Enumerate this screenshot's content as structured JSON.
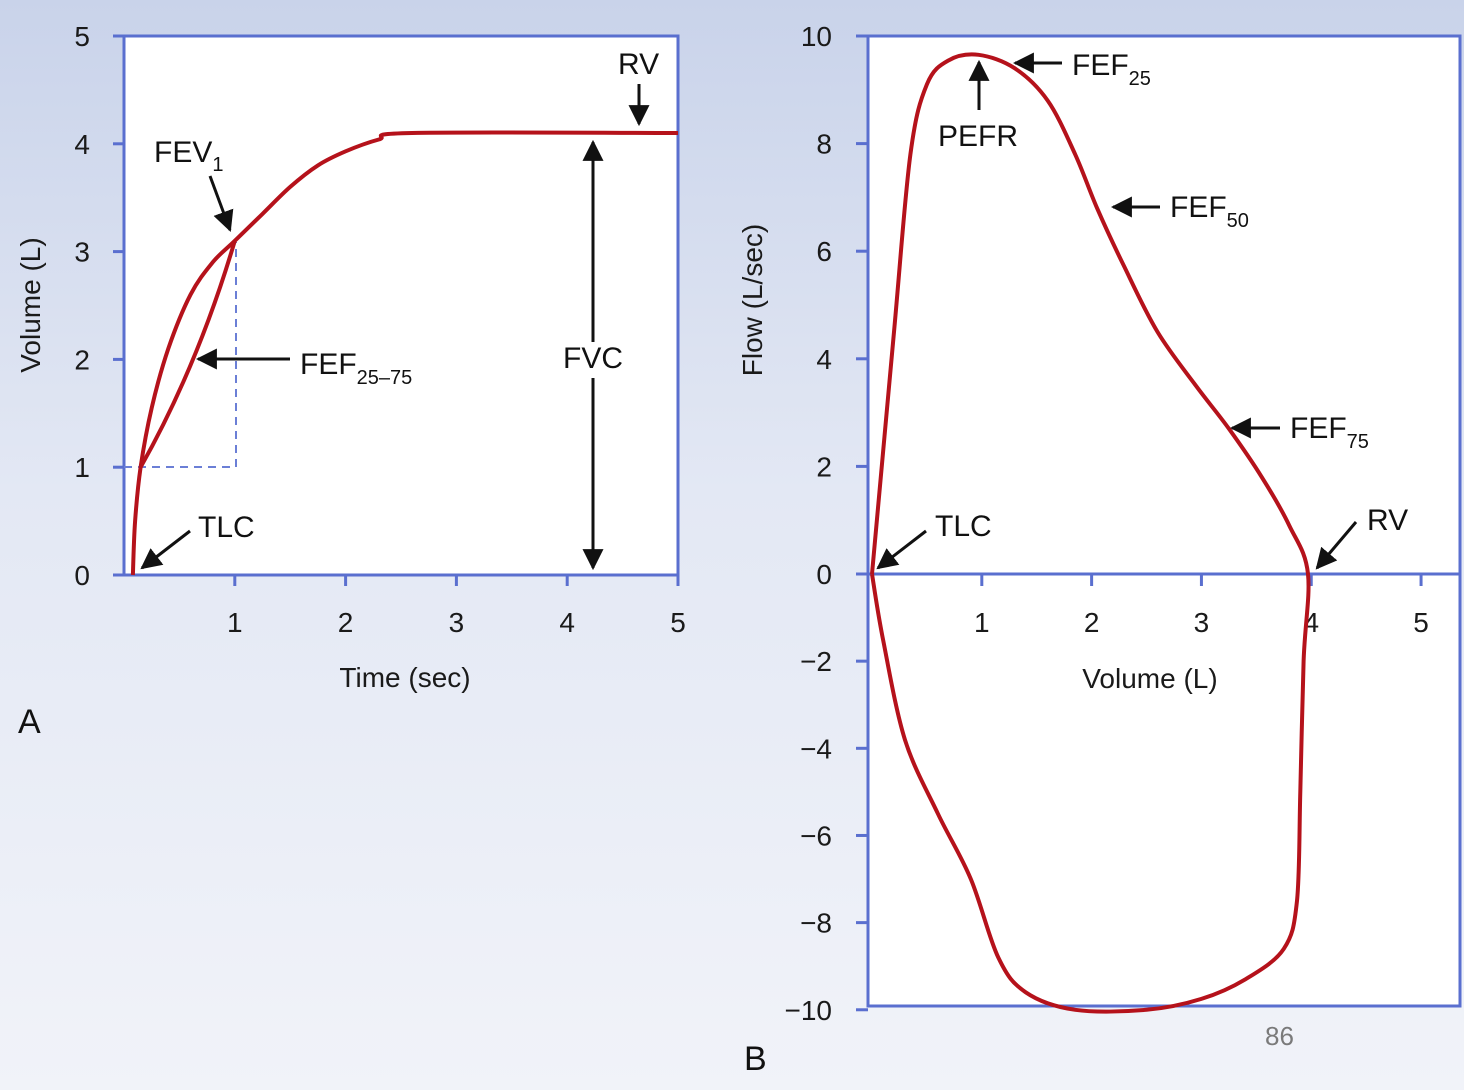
{
  "colors": {
    "curve": "#b5121b",
    "frame": "#5a6fcf",
    "dashed": "#6b7fd6",
    "arrow": "#111111"
  },
  "page_number": "86",
  "chart_data": [
    {
      "panel": "A",
      "type": "line",
      "xlabel": "Time (sec)",
      "ylabel": "Volume (L)",
      "xlim": [
        0,
        5
      ],
      "ylim": [
        0,
        5
      ],
      "xticks": [
        "1",
        "2",
        "3",
        "4",
        "5"
      ],
      "yticks": [
        "0",
        "1",
        "2",
        "3",
        "4",
        "5"
      ],
      "series": [
        {
          "points": [
            [
              0.08,
              0
            ],
            [
              0.1,
              0.5
            ],
            [
              0.15,
              1.0
            ],
            [
              0.25,
              1.55
            ],
            [
              0.4,
              2.1
            ],
            [
              0.6,
              2.6
            ],
            [
              0.8,
              2.9
            ],
            [
              1.0,
              3.1
            ],
            [
              1.25,
              3.35
            ],
            [
              1.5,
              3.6
            ],
            [
              1.75,
              3.8
            ],
            [
              2.0,
              3.93
            ],
            [
              2.3,
              4.04
            ],
            [
              2.6,
              4.1
            ],
            [
              5.0,
              4.1
            ]
          ]
        }
      ],
      "fef_chord": [
        [
          0.15,
          1.0
        ],
        [
          1.0,
          3.1
        ]
      ],
      "dashed_guides": {
        "x": 1.0,
        "y": 1.0
      },
      "annotations": {
        "rv": "RV",
        "fev": "FEV",
        "fev_sub": "1",
        "fef": "FEF",
        "fef_sub": "25–75",
        "fvc": "FVC",
        "tlc": "TLC"
      }
    },
    {
      "panel": "B",
      "type": "line",
      "xlabel": "Volume (L)",
      "ylabel": "Flow (L/sec)",
      "xlim": [
        0,
        5.3
      ],
      "ylim": [
        -10,
        10
      ],
      "xticks": [
        "1",
        "2",
        "3",
        "4",
        "5"
      ],
      "yticks": [
        "10",
        "8",
        "6",
        "4",
        "2",
        "0",
        "−2",
        "−4",
        "−6",
        "−8",
        "−10"
      ],
      "series": [
        {
          "points": [
            [
              0,
              0
            ],
            [
              0.2,
              4.5
            ],
            [
              0.35,
              7.8
            ],
            [
              0.5,
              9.1
            ],
            [
              0.7,
              9.55
            ],
            [
              0.97,
              9.65
            ],
            [
              1.3,
              9.4
            ],
            [
              1.6,
              8.8
            ],
            [
              1.85,
              7.8
            ],
            [
              2.05,
              6.8
            ],
            [
              2.3,
              5.7
            ],
            [
              2.6,
              4.5
            ],
            [
              2.95,
              3.5
            ],
            [
              3.25,
              2.7
            ],
            [
              3.55,
              1.8
            ],
            [
              3.8,
              0.9
            ],
            [
              3.97,
              0
            ],
            [
              3.93,
              -2
            ],
            [
              3.9,
              -5
            ],
            [
              3.87,
              -7.5
            ],
            [
              3.75,
              -8.6
            ],
            [
              3.4,
              -9.3
            ],
            [
              3.0,
              -9.75
            ],
            [
              2.5,
              -10.0
            ],
            [
              1.85,
              -10.0
            ],
            [
              1.4,
              -9.6
            ],
            [
              1.15,
              -8.8
            ],
            [
              0.9,
              -7.0
            ],
            [
              0.6,
              -5.5
            ],
            [
              0.3,
              -3.8
            ],
            [
              0.1,
              -1.5
            ],
            [
              0,
              0
            ]
          ]
        }
      ],
      "annotations": {
        "fef25": "FEF",
        "fef25_sub": "25",
        "pefr": "PEFR",
        "fef50": "FEF",
        "fef50_sub": "50",
        "fef75": "FEF",
        "fef75_sub": "75",
        "tlc": "TLC",
        "rv": "RV"
      }
    }
  ],
  "panel_labels": {
    "a": "A",
    "b": "B"
  }
}
